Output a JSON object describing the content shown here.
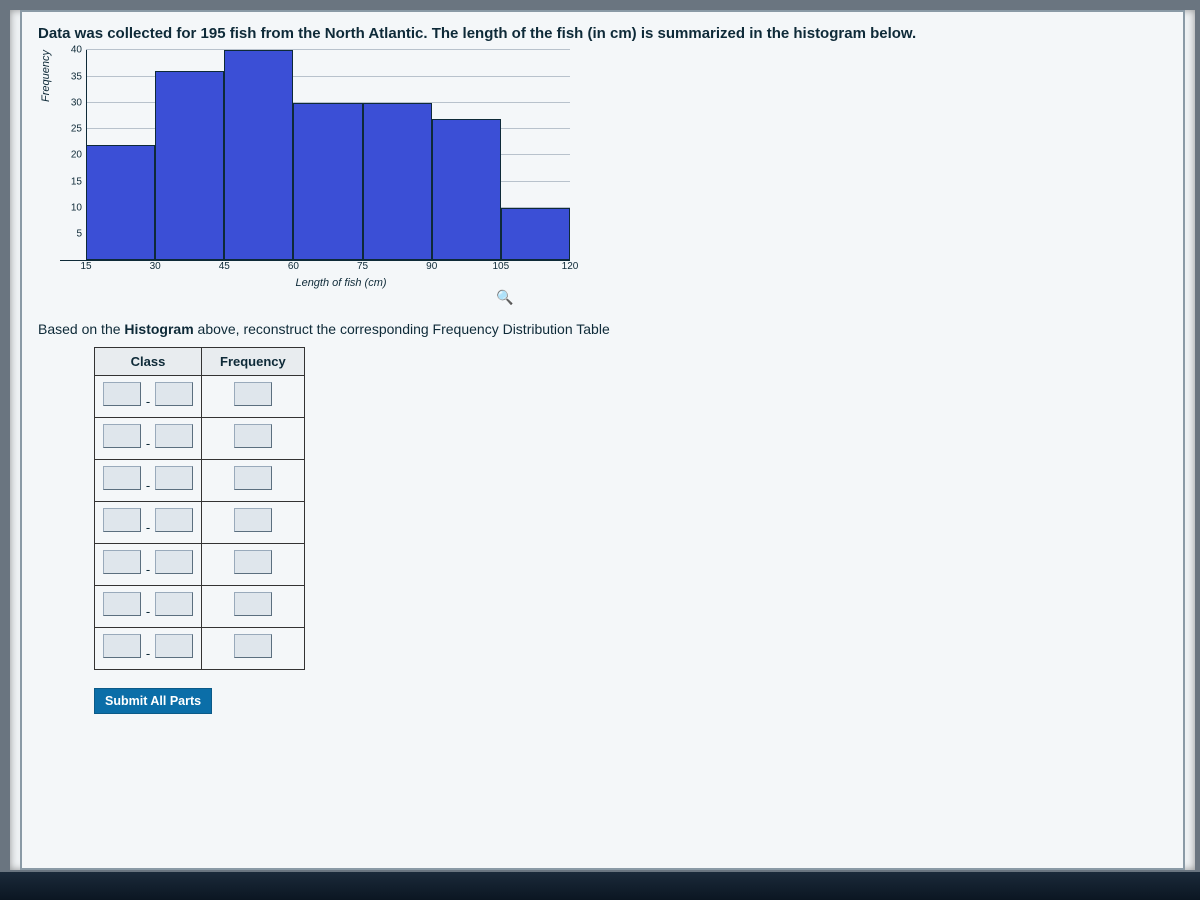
{
  "problem": {
    "prompt_text": "Data was collected for 195 fish from the North Atlantic. The length of the fish (in cm) is summarized in the histogram below.",
    "sub_prompt_before": "Based on the ",
    "sub_prompt_bold": "Histogram",
    "sub_prompt_after": " above, reconstruct the corresponding Frequency Distribution Table"
  },
  "histogram": {
    "type": "histogram",
    "ylabel": "Frequency",
    "xlabel": "Length of fish (cm)",
    "ylim": [
      0,
      40
    ],
    "ytick_step": 5,
    "yticks": [
      5,
      10,
      15,
      20,
      25,
      30,
      35,
      40
    ],
    "xticks": [
      15,
      30,
      45,
      60,
      75,
      90,
      105,
      120
    ],
    "bin_width": 15,
    "bins": [
      {
        "start": 15,
        "end": 30,
        "freq": 22
      },
      {
        "start": 30,
        "end": 45,
        "freq": 36
      },
      {
        "start": 45,
        "end": 60,
        "freq": 40
      },
      {
        "start": 60,
        "end": 75,
        "freq": 30
      },
      {
        "start": 75,
        "end": 90,
        "freq": 30
      },
      {
        "start": 90,
        "end": 105,
        "freq": 27
      },
      {
        "start": 105,
        "end": 120,
        "freq": 10
      }
    ],
    "bar_color": "#3b4fd6",
    "bar_border": "#0e2a38",
    "grid_color": "#b8c2cc",
    "background": "#f4f7f9",
    "tick_fontsize": 10,
    "label_fontsize": 11
  },
  "table": {
    "headers": {
      "class": "Class",
      "frequency": "Frequency"
    },
    "rows": 7,
    "separator": "-"
  },
  "submit_label": "Submit All Parts",
  "magnifier_glyph": "🔍"
}
